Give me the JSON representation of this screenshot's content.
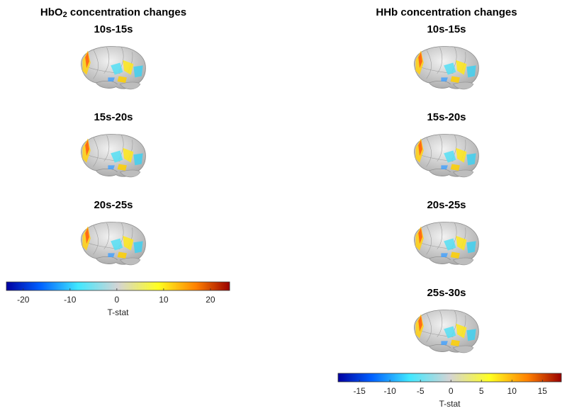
{
  "panels": [
    {
      "title": [
        "HbO",
        "2",
        " concentration changes"
      ],
      "maps": [
        {
          "label": "10s-15s"
        },
        {
          "label": "15s-20s"
        },
        {
          "label": "20s-25s"
        }
      ],
      "colorbar": {
        "label": "T-stat",
        "lim": [
          -23.6,
          24.1
        ],
        "ticks": [
          -20,
          -10,
          0,
          10,
          20
        ]
      }
    },
    {
      "title": [
        "HHb concentration changes"
      ],
      "maps": [
        {
          "label": "10s-15s"
        },
        {
          "label": "15s-20s"
        },
        {
          "label": "20s-25s"
        },
        {
          "label": "25s-30s"
        }
      ],
      "colorbar": {
        "label": "T-stat",
        "lim": [
          -18.5,
          18.1
        ],
        "ticks": [
          -15,
          -10,
          -5,
          0,
          5,
          10,
          15
        ]
      }
    }
  ]
}
